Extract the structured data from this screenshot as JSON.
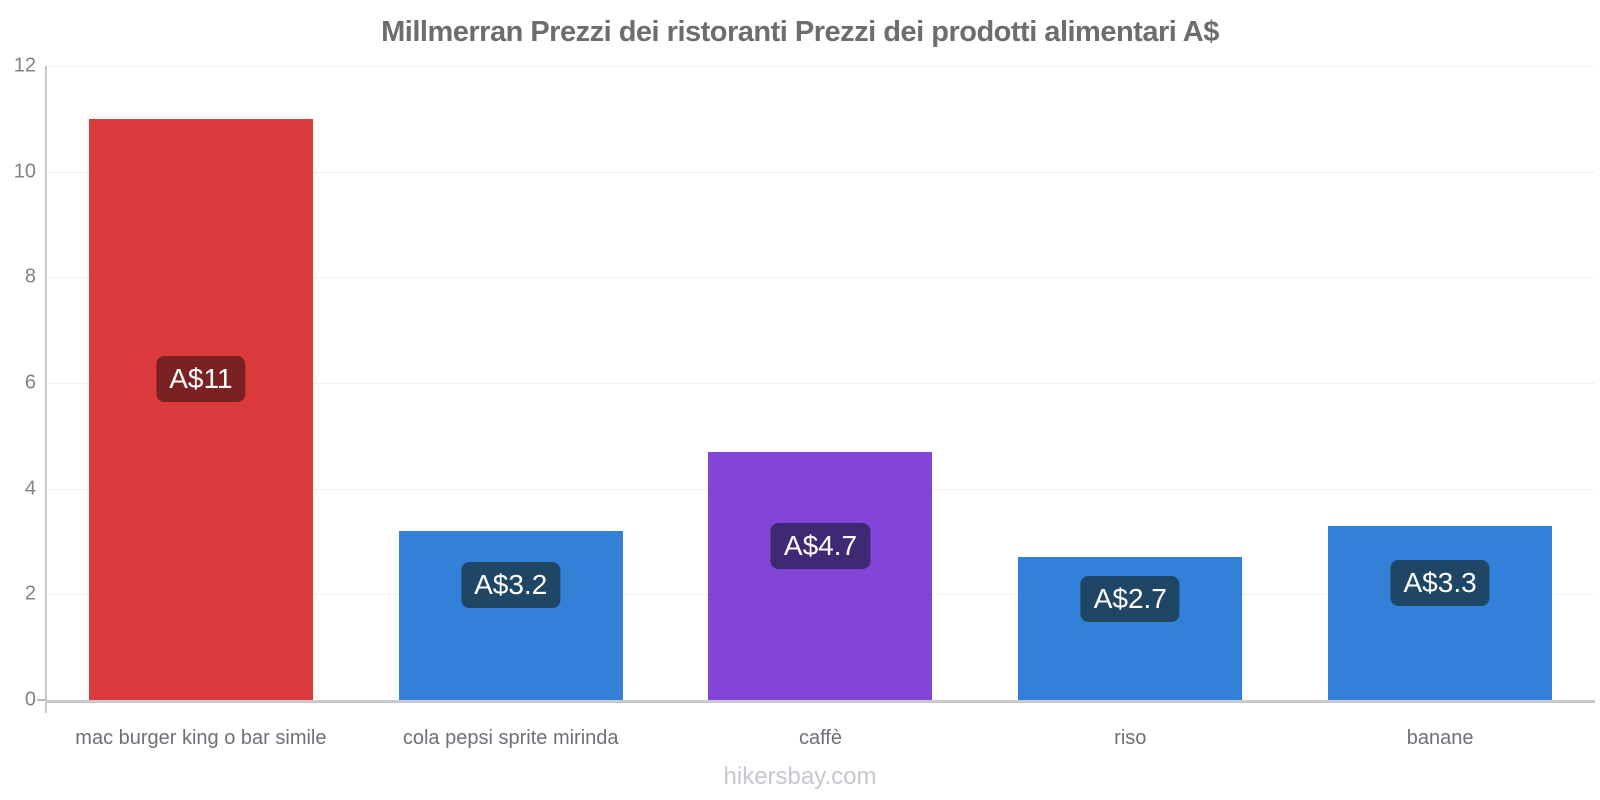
{
  "title": "Millmerran Prezzi dei ristoranti Prezzi dei prodotti alimentari A$",
  "footer": "hikersbay.com",
  "chart_data": {
    "type": "bar",
    "title": "Millmerran Prezzi dei ristoranti Prezzi dei prodotti alimentari A$",
    "categories": [
      "mac burger king o bar simile",
      "cola pepsi sprite mirinda",
      "caffè",
      "riso",
      "banane"
    ],
    "values": [
      11,
      3.2,
      4.7,
      2.7,
      3.3
    ],
    "value_labels": [
      "A$11",
      "A$3.2",
      "A$4.7",
      "A$2.7",
      "A$3.3"
    ],
    "bar_colors": [
      "#db3b3c",
      "#3380d9",
      "#8345d7",
      "#3380d9",
      "#3380d9"
    ],
    "value_label_bg_colors": [
      "#7a2123",
      "#204666",
      "#3e2a74",
      "#204666",
      "#204666"
    ],
    "xlabel": "",
    "ylabel": "",
    "ylim": [
      0,
      12
    ],
    "yticks": [
      0,
      2,
      4,
      6,
      8,
      10,
      12
    ],
    "grid": "horizontal",
    "legend": "none",
    "watermark": "hikersbay.com"
  }
}
